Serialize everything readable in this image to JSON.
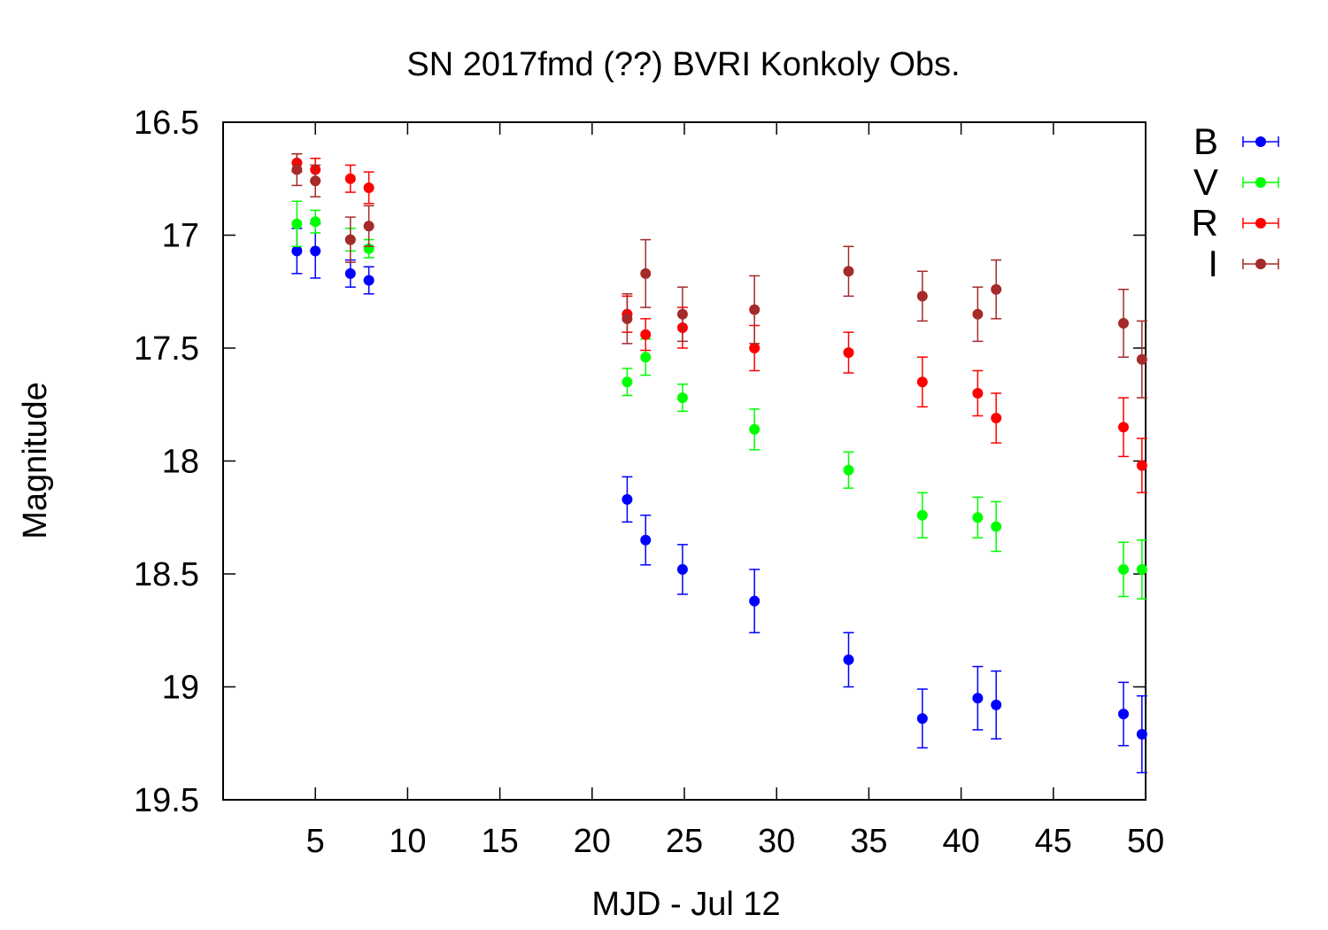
{
  "chart_data": {
    "type": "scatter",
    "title": "SN 2017fmd (??) BVRI Konkoly Obs.",
    "xlabel": "MJD - Jul 12",
    "ylabel": "Magnitude",
    "xlim": [
      0,
      50
    ],
    "ylim": [
      16.5,
      19.5
    ],
    "y_inverted": true,
    "xticks": [
      5,
      10,
      15,
      20,
      25,
      30,
      35,
      40,
      45,
      50
    ],
    "yticks": [
      16.5,
      17,
      17.5,
      18,
      18.5,
      19,
      19.5
    ],
    "xtick_labels": [
      "5",
      "10",
      "15",
      "20",
      "25",
      "30",
      "35",
      "40",
      "45",
      "50"
    ],
    "ytick_labels": [
      "16.5",
      "17",
      "17.5",
      "18",
      "18.5",
      "19",
      "19.5"
    ],
    "grid": false,
    "legend_position": "outside-right-top",
    "error_bars": true,
    "series": [
      {
        "name": "B",
        "color": "#0000ff",
        "points": [
          {
            "x": 4.0,
            "y": 17.07,
            "err": 0.1
          },
          {
            "x": 5.0,
            "y": 17.07,
            "err": 0.12
          },
          {
            "x": 6.9,
            "y": 17.17,
            "err": 0.06
          },
          {
            "x": 7.9,
            "y": 17.2,
            "err": 0.06
          },
          {
            "x": 21.9,
            "y": 18.17,
            "err": 0.1
          },
          {
            "x": 22.9,
            "y": 18.35,
            "err": 0.11
          },
          {
            "x": 24.9,
            "y": 18.48,
            "err": 0.11
          },
          {
            "x": 28.8,
            "y": 18.62,
            "err": 0.14
          },
          {
            "x": 33.9,
            "y": 18.88,
            "err": 0.12
          },
          {
            "x": 37.9,
            "y": 19.14,
            "err": 0.13
          },
          {
            "x": 40.9,
            "y": 19.05,
            "err": 0.14
          },
          {
            "x": 41.9,
            "y": 19.08,
            "err": 0.15
          },
          {
            "x": 48.8,
            "y": 19.12,
            "err": 0.14
          },
          {
            "x": 49.8,
            "y": 19.21,
            "err": 0.17
          }
        ]
      },
      {
        "name": "V",
        "color": "#00ff00",
        "points": [
          {
            "x": 4.0,
            "y": 16.95,
            "err": 0.1
          },
          {
            "x": 5.0,
            "y": 16.94,
            "err": 0.05
          },
          {
            "x": 6.9,
            "y": 17.02,
            "err": 0.05
          },
          {
            "x": 7.9,
            "y": 17.06,
            "err": 0.04
          },
          {
            "x": 21.9,
            "y": 17.65,
            "err": 0.06
          },
          {
            "x": 22.9,
            "y": 17.54,
            "err": 0.08
          },
          {
            "x": 24.9,
            "y": 17.72,
            "err": 0.06
          },
          {
            "x": 28.8,
            "y": 17.86,
            "err": 0.09
          },
          {
            "x": 33.9,
            "y": 18.04,
            "err": 0.08
          },
          {
            "x": 37.9,
            "y": 18.24,
            "err": 0.1
          },
          {
            "x": 40.9,
            "y": 18.25,
            "err": 0.09
          },
          {
            "x": 41.9,
            "y": 18.29,
            "err": 0.11
          },
          {
            "x": 48.8,
            "y": 18.48,
            "err": 0.12
          },
          {
            "x": 49.8,
            "y": 18.48,
            "err": 0.13
          }
        ]
      },
      {
        "name": "R",
        "color": "#ff0000",
        "points": [
          {
            "x": 4.0,
            "y": 16.68,
            "err": 0.04
          },
          {
            "x": 5.0,
            "y": 16.71,
            "err": 0.05
          },
          {
            "x": 6.9,
            "y": 16.75,
            "err": 0.06
          },
          {
            "x": 7.9,
            "y": 16.79,
            "err": 0.07
          },
          {
            "x": 21.9,
            "y": 17.35,
            "err": 0.08
          },
          {
            "x": 22.9,
            "y": 17.44,
            "err": 0.07
          },
          {
            "x": 24.9,
            "y": 17.41,
            "err": 0.09
          },
          {
            "x": 28.8,
            "y": 17.5,
            "err": 0.1
          },
          {
            "x": 33.9,
            "y": 17.52,
            "err": 0.09
          },
          {
            "x": 37.9,
            "y": 17.65,
            "err": 0.11
          },
          {
            "x": 40.9,
            "y": 17.7,
            "err": 0.1
          },
          {
            "x": 41.9,
            "y": 17.81,
            "err": 0.11
          },
          {
            "x": 48.8,
            "y": 17.85,
            "err": 0.13
          },
          {
            "x": 49.8,
            "y": 18.02,
            "err": 0.12
          }
        ]
      },
      {
        "name": "I",
        "color": "#a52a2a",
        "points": [
          {
            "x": 4.0,
            "y": 16.71,
            "err": 0.07
          },
          {
            "x": 5.0,
            "y": 16.76,
            "err": 0.07
          },
          {
            "x": 6.9,
            "y": 17.02,
            "err": 0.1
          },
          {
            "x": 7.9,
            "y": 16.96,
            "err": 0.09
          },
          {
            "x": 21.9,
            "y": 17.37,
            "err": 0.11
          },
          {
            "x": 22.9,
            "y": 17.17,
            "err": 0.15
          },
          {
            "x": 24.9,
            "y": 17.35,
            "err": 0.12
          },
          {
            "x": 28.8,
            "y": 17.33,
            "err": 0.15
          },
          {
            "x": 33.9,
            "y": 17.16,
            "err": 0.11
          },
          {
            "x": 37.9,
            "y": 17.27,
            "err": 0.11
          },
          {
            "x": 40.9,
            "y": 17.35,
            "err": 0.12
          },
          {
            "x": 41.9,
            "y": 17.24,
            "err": 0.13
          },
          {
            "x": 48.8,
            "y": 17.39,
            "err": 0.15
          },
          {
            "x": 49.8,
            "y": 17.55,
            "err": 0.17
          }
        ]
      }
    ]
  }
}
